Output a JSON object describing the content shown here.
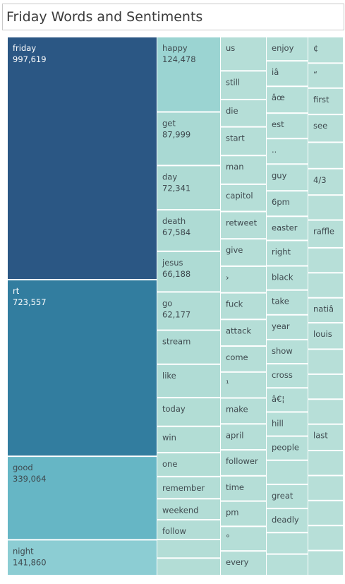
{
  "chart_data": {
    "type": "treemap",
    "title": "Friday Words and Sentiments",
    "columns": [
      {
        "items": [
          {
            "label": "friday",
            "value": 997619,
            "display": "997,619",
            "color": "#2b5784"
          },
          {
            "label": "rt",
            "value": 723557,
            "display": "723,557",
            "color": "#327d9f"
          },
          {
            "label": "good",
            "value": 339064,
            "display": "339,064",
            "color": "#66b6c5"
          },
          {
            "label": "night",
            "value": 141860,
            "display": "141,860",
            "color": "#8ccdd3"
          }
        ]
      },
      {
        "items": [
          {
            "label": "happy",
            "value": 124478,
            "display": "124,478",
            "color": "#9bd4d2"
          },
          {
            "label": "get",
            "value": 87999,
            "display": "87,999",
            "color": "#a9d9d3"
          },
          {
            "label": "day",
            "value": 72341,
            "display": "72,341",
            "color": "#aedbd4"
          },
          {
            "label": "death",
            "value": 67584,
            "display": "67,584",
            "color": "#aedbd4"
          },
          {
            "label": "jesus",
            "value": 66188,
            "display": "66,188",
            "color": "#aedbd4"
          },
          {
            "label": "go",
            "value": 62177,
            "display": "62,177",
            "color": "#b0dcd5"
          },
          {
            "label": "stream",
            "value": 55000,
            "color": "#b0dcd5"
          },
          {
            "label": "like",
            "value": 54000,
            "color": "#b0dcd5"
          },
          {
            "label": "today",
            "value": 46000,
            "color": "#b2ddd5"
          },
          {
            "label": "win",
            "value": 42000,
            "color": "#b2ddd5"
          },
          {
            "label": "one",
            "value": 38000,
            "color": "#b2ddd5"
          },
          {
            "label": "remember",
            "value": 35000,
            "color": "#b3ddd6"
          },
          {
            "label": "weekend",
            "value": 33000,
            "color": "#b3ddd6"
          },
          {
            "label": "follow",
            "value": 31000,
            "color": "#b3ddd6"
          },
          {
            "label": "",
            "value": 29000,
            "color": "#b3ddd6"
          },
          {
            "label": "",
            "value": 27000,
            "color": "#b3ddd6"
          }
        ]
      },
      {
        "items": [
          {
            "label": "us",
            "value": 48
          },
          {
            "label": "still",
            "value": 40
          },
          {
            "label": "die",
            "value": 38
          },
          {
            "label": "start",
            "value": 40
          },
          {
            "label": "man",
            "value": 40
          },
          {
            "label": "capitol",
            "value": 38
          },
          {
            "label": "retweet",
            "value": 38
          },
          {
            "label": "give",
            "value": 38
          },
          {
            "label": "›",
            "value": 37
          },
          {
            "label": "fuck",
            "value": 37
          },
          {
            "label": "attack",
            "value": 37
          },
          {
            "label": "come",
            "value": 36
          },
          {
            "label": "¹",
            "value": 36
          },
          {
            "label": "make",
            "value": 36
          },
          {
            "label": "april",
            "value": 36
          },
          {
            "label": "follower",
            "value": 36
          },
          {
            "label": "time",
            "value": 35
          },
          {
            "label": "pm",
            "value": 35
          },
          {
            "label": "°",
            "value": 34
          },
          {
            "label": "every",
            "value": 34
          }
        ],
        "color": "#b5ded7"
      },
      {
        "items": [
          {
            "label": "enjoy",
            "value": 34
          },
          {
            "label": "iâ",
            "value": 36
          },
          {
            "label": "âœ",
            "value": 38
          },
          {
            "label": "est",
            "value": 36
          },
          {
            "label": "..",
            "value": 36
          },
          {
            "label": "guy",
            "value": 38
          },
          {
            "label": "6pm",
            "value": 36
          },
          {
            "label": "easter",
            "value": 34
          },
          {
            "label": "right",
            "value": 36
          },
          {
            "label": "black",
            "value": 34
          },
          {
            "label": "take",
            "value": 35
          },
          {
            "label": "year",
            "value": 35
          },
          {
            "label": "show",
            "value": 34
          },
          {
            "label": "cross",
            "value": 34
          },
          {
            "label": "â€¦",
            "value": 34
          },
          {
            "label": "hill",
            "value": 34
          },
          {
            "label": "people",
            "value": 34
          },
          {
            "label": "",
            "value": 34
          },
          {
            "label": "great",
            "value": 34
          },
          {
            "label": "deadly",
            "value": 34
          },
          {
            "label": "",
            "value": 30
          },
          {
            "label": "",
            "value": 30
          }
        ],
        "color": "#b6dfd8"
      },
      {
        "items": [
          {
            "label": "¢",
            "value": 36
          },
          {
            "label": "“",
            "value": 34
          },
          {
            "label": "first",
            "value": 36
          },
          {
            "label": "see",
            "value": 38
          },
          {
            "label": "",
            "value": 36
          },
          {
            "label": "4/3",
            "value": 36
          },
          {
            "label": "",
            "value": 34
          },
          {
            "label": "raffle",
            "value": 38
          },
          {
            "label": "",
            "value": 34
          },
          {
            "label": "",
            "value": 34
          },
          {
            "label": "natiâ",
            "value": 34
          },
          {
            "label": "louis",
            "value": 36
          },
          {
            "label": "",
            "value": 34
          },
          {
            "label": "",
            "value": 34
          },
          {
            "label": "",
            "value": 34
          },
          {
            "label": "last",
            "value": 36
          },
          {
            "label": "",
            "value": 34
          },
          {
            "label": "",
            "value": 34
          },
          {
            "label": "",
            "value": 34
          },
          {
            "label": "",
            "value": 34
          },
          {
            "label": "",
            "value": 34
          }
        ],
        "color": "#b7dfd8"
      }
    ]
  }
}
